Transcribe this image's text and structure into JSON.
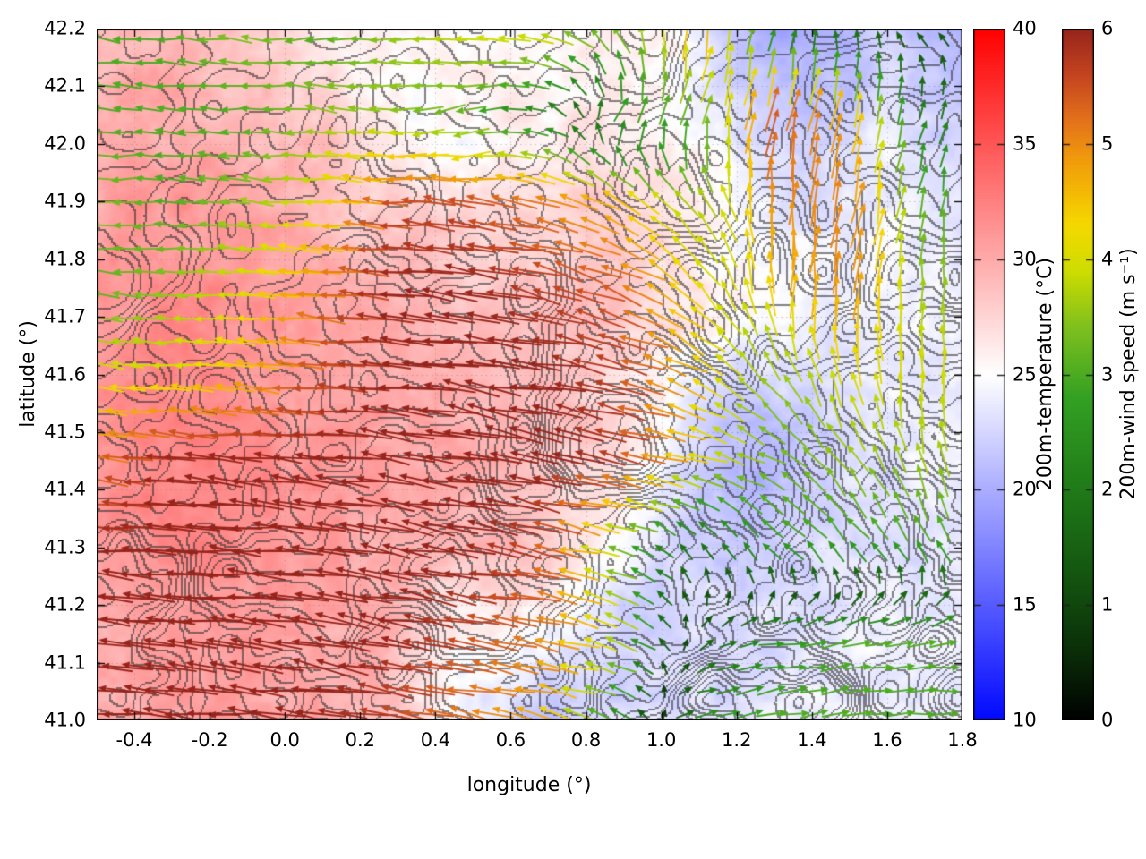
{
  "colorbars": [
    {
      "label": "200m-temperature (°C)",
      "min": 10,
      "max": 40,
      "ticks": [
        10,
        15,
        20,
        25,
        30,
        35,
        40
      ],
      "stops": [
        [
          10,
          "#0008ff"
        ],
        [
          25,
          "#ffffff"
        ],
        [
          40,
          "#ff0000"
        ]
      ]
    },
    {
      "label": "200m-wind speed (m s⁻¹)",
      "min": 0,
      "max": 6,
      "ticks": [
        0,
        1,
        2,
        3,
        4,
        5,
        6
      ],
      "stops": [
        [
          0,
          "#000000"
        ],
        [
          0.6,
          "#0a2e08"
        ],
        [
          1.2,
          "#13520f"
        ],
        [
          2,
          "#1f7a18"
        ],
        [
          2.8,
          "#33a022"
        ],
        [
          3.4,
          "#7dbf1e"
        ],
        [
          3.9,
          "#cddd00"
        ],
        [
          4.3,
          "#f5d800"
        ],
        [
          4.8,
          "#f2a209"
        ],
        [
          5.2,
          "#e4721a"
        ],
        [
          5.6,
          "#c44420"
        ],
        [
          6,
          "#96241b"
        ]
      ]
    }
  ],
  "chart_data": {
    "type": "heatmap",
    "title": "",
    "xlabel": "longitude (°)",
    "ylabel": "latitude (°)",
    "xlim": [
      -0.5,
      1.8
    ],
    "ylim": [
      41.0,
      42.2
    ],
    "x_ticks": [
      -0.4,
      -0.2,
      0.0,
      0.2,
      0.4,
      0.6,
      0.8,
      1.0,
      1.2,
      1.4,
      1.6,
      1.8
    ],
    "y_ticks": [
      41.0,
      41.1,
      41.2,
      41.3,
      41.4,
      41.5,
      41.6,
      41.7,
      41.8,
      41.9,
      42.0,
      42.1,
      42.2
    ],
    "grid": true,
    "temperature": {
      "units": "°C",
      "lon": [
        -0.5,
        -0.4,
        -0.3,
        -0.2,
        -0.1,
        0.0,
        0.1,
        0.2,
        0.3,
        0.4,
        0.5,
        0.6,
        0.7,
        0.8,
        0.9,
        1.0,
        1.1,
        1.2,
        1.3,
        1.4,
        1.5,
        1.6,
        1.7,
        1.8
      ],
      "lat": [
        42.2,
        42.1,
        42.0,
        41.9,
        41.8,
        41.7,
        41.6,
        41.5,
        41.4,
        41.3,
        41.2,
        41.1,
        41.0
      ],
      "values": [
        [
          29,
          29,
          29,
          29,
          28,
          27,
          26,
          26,
          26,
          26,
          25,
          25,
          25,
          26,
          26,
          26,
          24,
          21,
          20,
          20,
          20,
          22,
          21,
          20
        ],
        [
          29,
          30,
          30,
          29,
          29,
          28,
          27,
          26,
          25,
          25,
          26,
          26,
          25,
          26,
          26,
          25,
          24,
          22,
          21,
          21,
          21,
          23,
          22,
          21
        ],
        [
          30,
          30,
          30,
          30,
          29,
          29,
          29,
          27,
          26,
          25,
          25,
          26,
          26,
          27,
          26,
          26,
          25,
          24,
          23,
          22,
          23,
          24,
          23,
          22
        ],
        [
          30,
          31,
          31,
          31,
          30,
          30,
          29,
          28,
          28,
          27,
          27,
          27,
          27,
          28,
          27,
          27,
          26,
          25,
          24,
          23,
          24,
          24,
          24,
          23
        ],
        [
          31,
          31,
          31,
          31,
          31,
          30,
          30,
          29,
          29,
          29,
          28,
          28,
          28,
          28,
          28,
          27,
          26,
          25,
          25,
          24,
          24,
          25,
          24,
          24
        ],
        [
          31,
          31,
          32,
          32,
          31,
          31,
          30,
          30,
          30,
          29,
          29,
          29,
          29,
          29,
          28,
          27,
          26,
          25,
          25,
          24,
          24,
          24,
          24,
          24
        ],
        [
          31,
          32,
          32,
          32,
          31,
          31,
          31,
          30,
          30,
          30,
          29,
          29,
          29,
          28,
          27,
          26,
          24,
          23,
          23,
          23,
          24,
          24,
          24,
          24
        ],
        [
          31,
          32,
          32,
          32,
          32,
          31,
          31,
          31,
          30,
          30,
          30,
          29,
          29,
          28,
          27,
          25,
          22,
          21,
          21,
          22,
          23,
          24,
          24,
          24
        ],
        [
          31,
          32,
          32,
          32,
          32,
          31,
          31,
          31,
          30,
          30,
          30,
          29,
          28,
          27,
          26,
          24,
          22,
          20,
          21,
          22,
          23,
          23,
          24,
          24
        ],
        [
          31,
          31,
          32,
          32,
          31,
          31,
          31,
          30,
          30,
          29,
          29,
          29,
          28,
          26,
          25,
          23,
          22,
          22,
          22,
          23,
          23,
          23,
          23,
          24
        ],
        [
          30,
          31,
          31,
          31,
          31,
          31,
          30,
          30,
          29,
          27,
          26,
          27,
          26,
          24,
          22,
          22,
          23,
          23,
          23,
          23,
          24,
          24,
          24,
          24
        ],
        [
          30,
          30,
          31,
          31,
          31,
          30,
          30,
          30,
          29,
          26,
          25,
          25,
          23,
          23,
          22,
          23,
          23,
          23,
          23,
          24,
          24,
          24,
          24,
          24
        ],
        [
          30,
          30,
          30,
          31,
          30,
          30,
          30,
          29,
          28,
          26,
          24,
          22,
          21,
          22,
          23,
          23,
          23,
          23,
          24,
          24,
          24,
          24,
          24,
          24
        ]
      ]
    },
    "wind": {
      "units": "m/s",
      "lon": [
        -0.5,
        -0.3,
        -0.1,
        0.1,
        0.3,
        0.5,
        0.7,
        0.9,
        1.1,
        1.3,
        1.5,
        1.7
      ],
      "lat": [
        42.2,
        42.05,
        41.9,
        41.75,
        41.6,
        41.45,
        41.3,
        41.15,
        41.0
      ],
      "u": [
        [
          -3,
          -3,
          -3.5,
          -3,
          -3.5,
          -4,
          -4,
          -2,
          0.5,
          0.5,
          -0.5,
          -1
        ],
        [
          -3,
          -3,
          -3,
          -3.5,
          -3.5,
          -3,
          -2,
          1.5,
          1,
          1,
          1,
          0.5
        ],
        [
          -3.5,
          -3,
          -3.5,
          -4,
          -5.5,
          -5.5,
          -5,
          -4,
          -2,
          0,
          1,
          0.5
        ],
        [
          -3,
          -3.5,
          -4,
          -5,
          -6,
          -6,
          -5.5,
          -5,
          -3,
          0,
          0.5,
          0
        ],
        [
          -4,
          -4,
          -4.5,
          -5.5,
          -6,
          -6,
          -6,
          -5.5,
          -4,
          -2,
          -1,
          0
        ],
        [
          -5,
          -6,
          -6,
          -6,
          -6,
          -6,
          -6,
          -5.5,
          -4,
          -3,
          -2,
          -1
        ],
        [
          -6,
          -6,
          -6,
          -6,
          -6,
          -6,
          -5.5,
          -3,
          -1,
          -2,
          -2,
          -1.5
        ],
        [
          -6,
          -6,
          -6,
          -6,
          -6,
          -5.5,
          -5,
          -3.5,
          1,
          2.5,
          3,
          3
        ],
        [
          -6,
          -6,
          -6,
          -6,
          -5.5,
          -5,
          -4.5,
          -2,
          2.5,
          3,
          3,
          3
        ]
      ],
      "v": [
        [
          0.5,
          0,
          0.5,
          -0.5,
          0,
          0.5,
          1,
          3,
          5,
          2,
          1.5,
          1
        ],
        [
          0,
          0.5,
          0,
          0.5,
          0,
          -1,
          1,
          2.5,
          3,
          5.5,
          4.5,
          2
        ],
        [
          0,
          0,
          0.5,
          0,
          0.5,
          0.5,
          1,
          2,
          3,
          5,
          5,
          3
        ],
        [
          0.5,
          0,
          0,
          0.5,
          0.5,
          1,
          1.5,
          2,
          3,
          4.5,
          5,
          3.5
        ],
        [
          0.5,
          0,
          0.5,
          0.5,
          0.5,
          1,
          1,
          1.5,
          2,
          3,
          4,
          4
        ],
        [
          0.5,
          0.5,
          0.5,
          0.5,
          1,
          1,
          1.5,
          1.5,
          1,
          1.5,
          3,
          3.5
        ],
        [
          0.5,
          0.5,
          0.5,
          0.5,
          1,
          1,
          1,
          1,
          1.5,
          2,
          2,
          2.5
        ],
        [
          0.5,
          0.5,
          0.5,
          1,
          1,
          1,
          1,
          1.5,
          1,
          0.5,
          0.5,
          0.5
        ],
        [
          0.5,
          0.5,
          0.5,
          1,
          1,
          1,
          1,
          1,
          0.5,
          0.5,
          0.5,
          0
        ]
      ]
    },
    "contours": {
      "description": "terrain elevation contour lines",
      "color": "#3a3a3a"
    }
  }
}
